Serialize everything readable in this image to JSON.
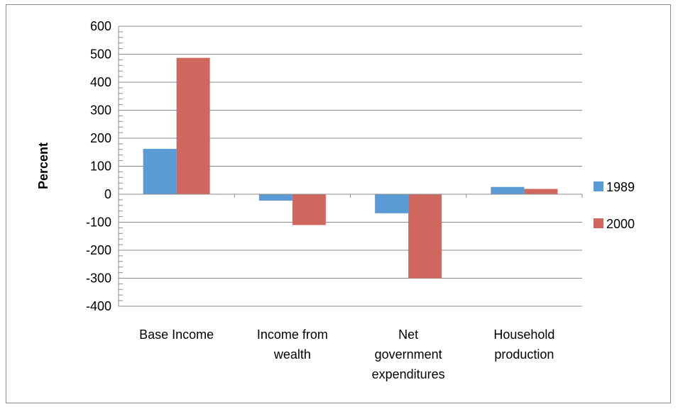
{
  "chart_data": {
    "type": "bar",
    "title": "",
    "xlabel": "",
    "ylabel": "Percent",
    "ylim": [
      -400,
      600
    ],
    "yticks": [
      600,
      500,
      400,
      300,
      200,
      100,
      0,
      -100,
      -200,
      -300,
      -400
    ],
    "ytick_labels": [
      "600",
      "500",
      "400",
      "300",
      "200",
      "100",
      "0",
      "-100",
      "-200",
      "-300",
      "-400"
    ],
    "grid": true,
    "legend_position": "right",
    "categories": [
      [
        "Base Income"
      ],
      [
        "Income from",
        "wealth"
      ],
      [
        "Net",
        "government",
        "expenditures"
      ],
      [
        "Household",
        "production"
      ]
    ],
    "series": [
      {
        "name": "1989",
        "color": "#5b9bd5",
        "values": [
          162,
          -23,
          -68,
          26
        ]
      },
      {
        "name": "2000",
        "color": "#d0675f",
        "values": [
          487,
          -110,
          -300,
          19
        ]
      }
    ]
  }
}
